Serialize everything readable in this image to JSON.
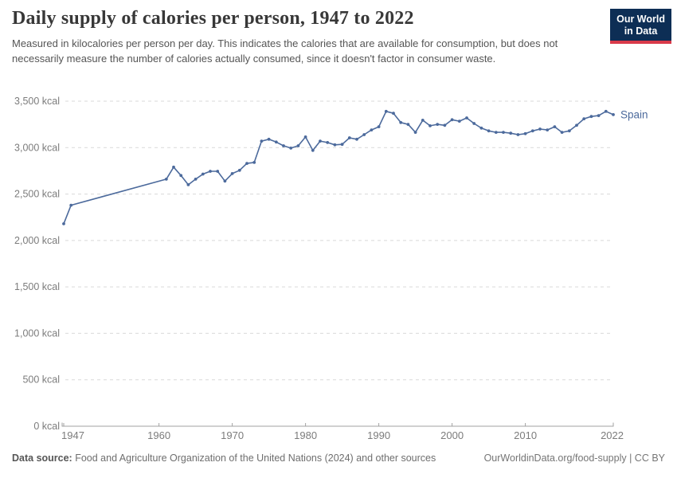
{
  "logo": {
    "line1": "Our World",
    "line2": "in Data",
    "bg_color": "#0d2e55",
    "accent_color": "#d93a4a"
  },
  "chart_data": {
    "type": "line",
    "title": "Daily supply of calories per person, 1947 to 2022",
    "subtitle": "Measured in kilocalories per person per day. This indicates the calories that are available for consumption, but does not necessarily measure the number of calories actually consumed, since it doesn't factor in consumer waste.",
    "xlabel": "",
    "ylabel": "",
    "xlim": [
      1947,
      2022
    ],
    "ylim": [
      0,
      3500
    ],
    "grid": "horizontal-dashed",
    "legend_position": "end-of-line-label",
    "x_ticks": [
      {
        "value": 1947,
        "label": "1947"
      },
      {
        "value": 1960,
        "label": "1960"
      },
      {
        "value": 1970,
        "label": "1970"
      },
      {
        "value": 1980,
        "label": "1980"
      },
      {
        "value": 1990,
        "label": "1990"
      },
      {
        "value": 2000,
        "label": "2000"
      },
      {
        "value": 2010,
        "label": "2010"
      },
      {
        "value": 2022,
        "label": "2022"
      }
    ],
    "y_ticks": [
      {
        "value": 0,
        "label": "0 kcal"
      },
      {
        "value": 500,
        "label": "500 kcal"
      },
      {
        "value": 1000,
        "label": "1,000 kcal"
      },
      {
        "value": 1500,
        "label": "1,500 kcal"
      },
      {
        "value": 2000,
        "label": "2,000 kcal"
      },
      {
        "value": 2500,
        "label": "2,500 kcal"
      },
      {
        "value": 3000,
        "label": "3,000 kcal"
      },
      {
        "value": 3500,
        "label": "3,500 kcal"
      }
    ],
    "series": [
      {
        "name": "Spain",
        "color": "#4c6a9c",
        "points": [
          [
            1947,
            2180
          ],
          [
            1948,
            2380
          ],
          [
            1961,
            2660
          ],
          [
            1962,
            2790
          ],
          [
            1963,
            2700
          ],
          [
            1964,
            2600
          ],
          [
            1965,
            2660
          ],
          [
            1966,
            2715
          ],
          [
            1967,
            2745
          ],
          [
            1968,
            2745
          ],
          [
            1969,
            2640
          ],
          [
            1970,
            2720
          ],
          [
            1971,
            2755
          ],
          [
            1972,
            2830
          ],
          [
            1973,
            2840
          ],
          [
            1974,
            3070
          ],
          [
            1975,
            3090
          ],
          [
            1976,
            3060
          ],
          [
            1977,
            3020
          ],
          [
            1978,
            2995
          ],
          [
            1979,
            3020
          ],
          [
            1980,
            3115
          ],
          [
            1981,
            2970
          ],
          [
            1982,
            3070
          ],
          [
            1983,
            3055
          ],
          [
            1984,
            3030
          ],
          [
            1985,
            3035
          ],
          [
            1986,
            3105
          ],
          [
            1987,
            3090
          ],
          [
            1988,
            3140
          ],
          [
            1989,
            3190
          ],
          [
            1990,
            3225
          ],
          [
            1991,
            3390
          ],
          [
            1992,
            3370
          ],
          [
            1993,
            3270
          ],
          [
            1994,
            3250
          ],
          [
            1995,
            3165
          ],
          [
            1996,
            3295
          ],
          [
            1997,
            3235
          ],
          [
            1998,
            3250
          ],
          [
            1999,
            3240
          ],
          [
            2000,
            3300
          ],
          [
            2001,
            3285
          ],
          [
            2002,
            3320
          ],
          [
            2003,
            3260
          ],
          [
            2004,
            3210
          ],
          [
            2005,
            3180
          ],
          [
            2006,
            3165
          ],
          [
            2007,
            3165
          ],
          [
            2008,
            3155
          ],
          [
            2009,
            3140
          ],
          [
            2010,
            3150
          ],
          [
            2011,
            3180
          ],
          [
            2012,
            3200
          ],
          [
            2013,
            3190
          ],
          [
            2014,
            3225
          ],
          [
            2015,
            3165
          ],
          [
            2016,
            3180
          ],
          [
            2017,
            3240
          ],
          [
            2018,
            3310
          ],
          [
            2019,
            3335
          ],
          [
            2020,
            3345
          ],
          [
            2021,
            3390
          ],
          [
            2022,
            3355
          ]
        ]
      }
    ]
  },
  "footer": {
    "datasource_label": "Data source:",
    "datasource_text": " Food and Agriculture Organization of the United Nations (2024) and other sources",
    "link_text": "OurWorldinData.org/food-supply | CC BY"
  }
}
